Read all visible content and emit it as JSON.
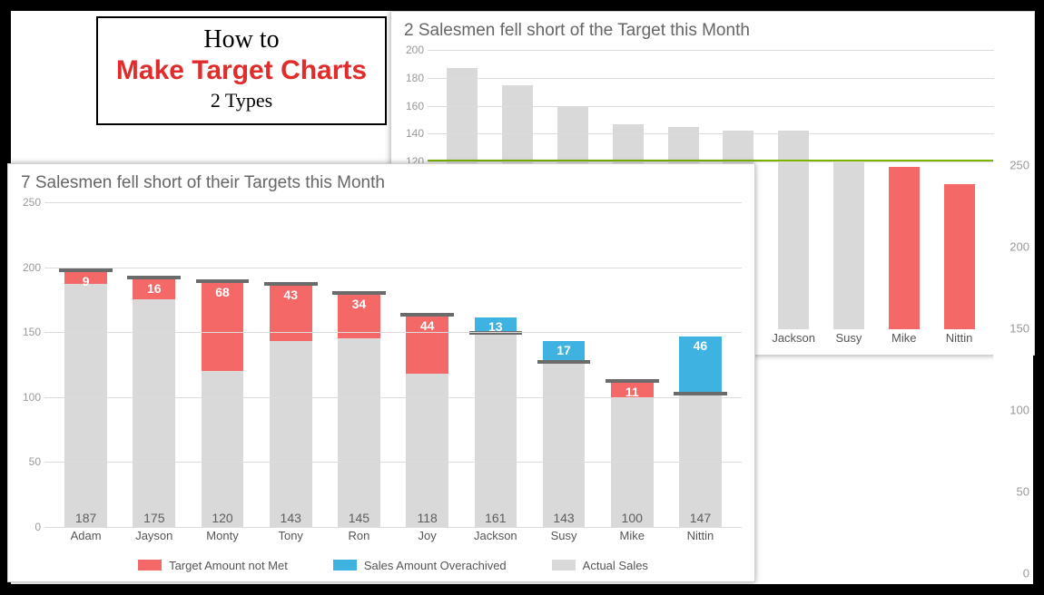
{
  "title_card": {
    "how": "How to",
    "main": "Make Target Charts",
    "sub": "2 Types"
  },
  "colors": {
    "actual": "#d9d9d9",
    "not_met": "#f56868",
    "over": "#3eb2e0",
    "target_mark": "#6b6b6b",
    "grid": "#dcdcdc",
    "target_line": "#7bb400",
    "text_muted": "#999999"
  },
  "chart_a": {
    "type": "bar-stacked-with-target-mark",
    "title": "7 Salesmen fell short of their Targets this Month",
    "ylim": [
      0,
      250
    ],
    "ytick_step": 50,
    "bar_width": 0.62,
    "title_fontsize": 19,
    "label_fontsize": 13,
    "value_label_fontsize": 14,
    "categories": [
      "Adam",
      "Jayson",
      "Monty",
      "Tony",
      "Ron",
      "Joy",
      "Jackson",
      "Susy",
      "Mike",
      "Nittin"
    ],
    "actual": [
      187,
      175,
      120,
      143,
      145,
      118,
      161,
      143,
      100,
      147
    ],
    "diff": [
      9,
      16,
      68,
      43,
      34,
      44,
      13,
      17,
      11,
      46
    ],
    "over": [
      false,
      false,
      false,
      false,
      false,
      false,
      true,
      true,
      false,
      true
    ],
    "target": [
      196,
      191,
      188,
      186,
      179,
      162,
      148,
      126,
      111,
      101
    ],
    "legend": {
      "not_met": "Target Amount not Met",
      "over": "Sales Amount Overachived",
      "actual": "Actual Sales"
    }
  },
  "chart_b": {
    "type": "bar-with-target-line",
    "title": "2 Salesmen fell short of the Target this Month",
    "ylim": [
      0,
      200
    ],
    "ytick_step": 20,
    "ytick_min_shown": 120,
    "bar_width": 0.56,
    "title_fontsize": 19,
    "target_value": 120,
    "target_label": "120",
    "categories": [
      "Adam",
      "Jayson",
      "Monty",
      "Tony",
      "Ron",
      "Joy",
      "Jackson",
      "Susy",
      "Mike",
      "Nittin"
    ],
    "values": [
      187,
      175,
      160,
      147,
      145,
      142,
      142,
      120,
      116,
      104
    ]
  },
  "stray_axis": {
    "ticks": [
      0,
      50,
      100,
      150,
      200,
      250
    ]
  }
}
